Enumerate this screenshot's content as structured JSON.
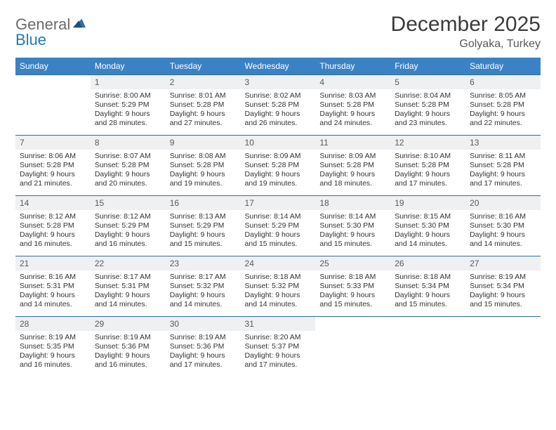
{
  "brand": {
    "general": "General",
    "blue": "Blue"
  },
  "title": "December 2025",
  "subtitle": "Golyaka, Turkey",
  "colors": {
    "accent": "#3b82c4",
    "line": "#2f6fa8",
    "cell_bg": "#eef0f2",
    "page_bg": "#ffffff",
    "logo_blue": "#207ab8",
    "logo_grey": "#6b6b6b"
  },
  "daynames": [
    "Sunday",
    "Monday",
    "Tuesday",
    "Wednesday",
    "Thursday",
    "Friday",
    "Saturday"
  ],
  "weeks": [
    [
      {
        "n": "",
        "sr": "",
        "ss": "",
        "dl": ""
      },
      {
        "n": "1",
        "sr": "8:00 AM",
        "ss": "5:29 PM",
        "dl": "9 hours and 28 minutes."
      },
      {
        "n": "2",
        "sr": "8:01 AM",
        "ss": "5:28 PM",
        "dl": "9 hours and 27 minutes."
      },
      {
        "n": "3",
        "sr": "8:02 AM",
        "ss": "5:28 PM",
        "dl": "9 hours and 26 minutes."
      },
      {
        "n": "4",
        "sr": "8:03 AM",
        "ss": "5:28 PM",
        "dl": "9 hours and 24 minutes."
      },
      {
        "n": "5",
        "sr": "8:04 AM",
        "ss": "5:28 PM",
        "dl": "9 hours and 23 minutes."
      },
      {
        "n": "6",
        "sr": "8:05 AM",
        "ss": "5:28 PM",
        "dl": "9 hours and 22 minutes."
      }
    ],
    [
      {
        "n": "7",
        "sr": "8:06 AM",
        "ss": "5:28 PM",
        "dl": "9 hours and 21 minutes."
      },
      {
        "n": "8",
        "sr": "8:07 AM",
        "ss": "5:28 PM",
        "dl": "9 hours and 20 minutes."
      },
      {
        "n": "9",
        "sr": "8:08 AM",
        "ss": "5:28 PM",
        "dl": "9 hours and 19 minutes."
      },
      {
        "n": "10",
        "sr": "8:09 AM",
        "ss": "5:28 PM",
        "dl": "9 hours and 19 minutes."
      },
      {
        "n": "11",
        "sr": "8:09 AM",
        "ss": "5:28 PM",
        "dl": "9 hours and 18 minutes."
      },
      {
        "n": "12",
        "sr": "8:10 AM",
        "ss": "5:28 PM",
        "dl": "9 hours and 17 minutes."
      },
      {
        "n": "13",
        "sr": "8:11 AM",
        "ss": "5:28 PM",
        "dl": "9 hours and 17 minutes."
      }
    ],
    [
      {
        "n": "14",
        "sr": "8:12 AM",
        "ss": "5:28 PM",
        "dl": "9 hours and 16 minutes."
      },
      {
        "n": "15",
        "sr": "8:12 AM",
        "ss": "5:29 PM",
        "dl": "9 hours and 16 minutes."
      },
      {
        "n": "16",
        "sr": "8:13 AM",
        "ss": "5:29 PM",
        "dl": "9 hours and 15 minutes."
      },
      {
        "n": "17",
        "sr": "8:14 AM",
        "ss": "5:29 PM",
        "dl": "9 hours and 15 minutes."
      },
      {
        "n": "18",
        "sr": "8:14 AM",
        "ss": "5:30 PM",
        "dl": "9 hours and 15 minutes."
      },
      {
        "n": "19",
        "sr": "8:15 AM",
        "ss": "5:30 PM",
        "dl": "9 hours and 14 minutes."
      },
      {
        "n": "20",
        "sr": "8:16 AM",
        "ss": "5:30 PM",
        "dl": "9 hours and 14 minutes."
      }
    ],
    [
      {
        "n": "21",
        "sr": "8:16 AM",
        "ss": "5:31 PM",
        "dl": "9 hours and 14 minutes."
      },
      {
        "n": "22",
        "sr": "8:17 AM",
        "ss": "5:31 PM",
        "dl": "9 hours and 14 minutes."
      },
      {
        "n": "23",
        "sr": "8:17 AM",
        "ss": "5:32 PM",
        "dl": "9 hours and 14 minutes."
      },
      {
        "n": "24",
        "sr": "8:18 AM",
        "ss": "5:32 PM",
        "dl": "9 hours and 14 minutes."
      },
      {
        "n": "25",
        "sr": "8:18 AM",
        "ss": "5:33 PM",
        "dl": "9 hours and 15 minutes."
      },
      {
        "n": "26",
        "sr": "8:18 AM",
        "ss": "5:34 PM",
        "dl": "9 hours and 15 minutes."
      },
      {
        "n": "27",
        "sr": "8:19 AM",
        "ss": "5:34 PM",
        "dl": "9 hours and 15 minutes."
      }
    ],
    [
      {
        "n": "28",
        "sr": "8:19 AM",
        "ss": "5:35 PM",
        "dl": "9 hours and 16 minutes."
      },
      {
        "n": "29",
        "sr": "8:19 AM",
        "ss": "5:36 PM",
        "dl": "9 hours and 16 minutes."
      },
      {
        "n": "30",
        "sr": "8:19 AM",
        "ss": "5:36 PM",
        "dl": "9 hours and 17 minutes."
      },
      {
        "n": "31",
        "sr": "8:20 AM",
        "ss": "5:37 PM",
        "dl": "9 hours and 17 minutes."
      },
      {
        "n": "",
        "sr": "",
        "ss": "",
        "dl": ""
      },
      {
        "n": "",
        "sr": "",
        "ss": "",
        "dl": ""
      },
      {
        "n": "",
        "sr": "",
        "ss": "",
        "dl": ""
      }
    ]
  ],
  "labels": {
    "sunrise": "Sunrise:",
    "sunset": "Sunset:",
    "daylight": "Daylight:"
  }
}
